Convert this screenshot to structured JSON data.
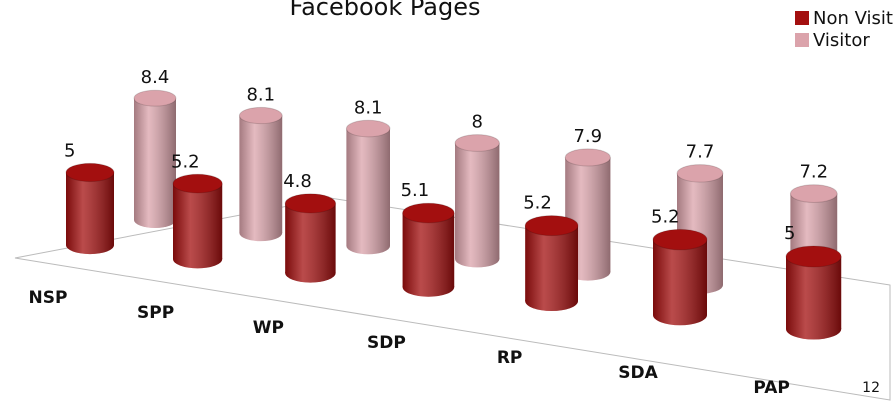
{
  "chart_data": {
    "type": "bar3d",
    "title": "Facebook Pages",
    "categories": [
      "NSP",
      "SPP",
      "WP",
      "SDP",
      "RP",
      "SDA",
      "PAP"
    ],
    "series": [
      {
        "name": "Non Visitor",
        "color": "#a30f0f",
        "values": [
          5,
          5.2,
          4.8,
          5.1,
          5.2,
          5.2,
          5
        ]
      },
      {
        "name": "Visitor",
        "color": "#dba3ab",
        "values": [
          8.4,
          8.1,
          8.1,
          8,
          7.9,
          7.7,
          7.2
        ]
      }
    ],
    "legend": "top-right"
  },
  "page_number": "12"
}
